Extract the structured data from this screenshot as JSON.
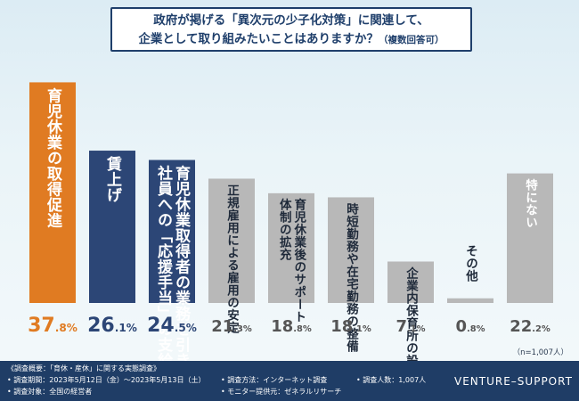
{
  "title": {
    "line1": "政府が掲げる「異次元の少子化対策」に関連して、",
    "line2": "企業として取り組みたいことはありますか？",
    "line2_suffix": "（複数回答可）"
  },
  "chart_data": {
    "type": "bar",
    "categories": [
      "育児休業の取得促進",
      "賃上げ",
      "育児休業取得者の業務を引き継ぐ社員への「応援手当」の支給",
      "正規雇用による雇用の安定",
      "育児休業後のサポート体制の拡充",
      "時短勤務や在宅勤務の整備",
      "企業内保育所の設置",
      "その他",
      "特にない"
    ],
    "label_lines": [
      [
        "育児休業の取得促進"
      ],
      [
        "賃上げ"
      ],
      [
        "育児休業取得者の業務を引き継ぐ",
        "社員への「応援手当」の支給"
      ],
      [
        "正規雇用による雇用の安定"
      ],
      [
        "育児休業後のサポート",
        "体制の拡充"
      ],
      [
        "時短勤務や在宅勤務の整備"
      ],
      [
        "企業内保育所の設置"
      ],
      [
        "その他"
      ],
      [
        "特にない"
      ]
    ],
    "values": [
      37.8,
      26.1,
      24.5,
      21.3,
      18.8,
      18.1,
      7.1,
      0.8,
      22.2
    ],
    "value_int": [
      "37",
      "26",
      "24",
      "21",
      "18",
      "18",
      "7",
      "0",
      "22"
    ],
    "value_dec": [
      ".8",
      ".1",
      ".5",
      ".3",
      ".8",
      ".1",
      ".1",
      ".8",
      ".2"
    ],
    "unit": "%",
    "ylim": [
      0,
      40
    ],
    "colors": [
      "#e07b22",
      "#2c4676",
      "#2c4676",
      "#b8b8b8",
      "#b8b8b8",
      "#b8b8b8",
      "#b8b8b8",
      "#b8b8b8",
      "#b8b8b8"
    ],
    "label_colors": [
      "#ffffff",
      "#ffffff",
      "#ffffff",
      "#1f2a3a",
      "#1f2a3a",
      "#1f2a3a",
      "#1f2a3a",
      "#1f2a3a",
      "#ffffff"
    ],
    "value_colors": [
      "#e07b22",
      "#2c4676",
      "#2c4676",
      "#555555",
      "#555555",
      "#555555",
      "#555555",
      "#555555",
      "#555555"
    ],
    "grid": false
  },
  "n_note": "（n=1,007人）",
  "footer": {
    "overview": "《調査概要：「育休・産休」に関する実態調査》",
    "period": "• 調査期間：2023年5月12日（金）〜2023年5月13日（土）",
    "method": "• 調査方法：インターネット調査",
    "count": "• 調査人数：1,007人",
    "target": "• 調査対象：全国の経営者",
    "provider": "• モニター提供元：ゼネラルリサーチ",
    "brand": "VENTURE–SUPPORT"
  }
}
